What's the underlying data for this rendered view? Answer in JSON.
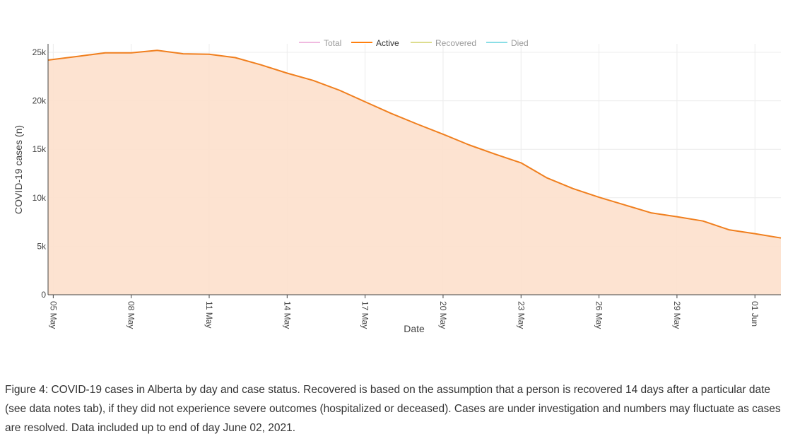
{
  "chart_data": {
    "type": "area",
    "title": "",
    "xlabel": "Date",
    "ylabel": "COVID-19 cases (n)",
    "ylim": [
      0,
      25000
    ],
    "y_ticks": [
      {
        "value": 0,
        "label": "0"
      },
      {
        "value": 5000,
        "label": "5k"
      },
      {
        "value": 10000,
        "label": "10k"
      },
      {
        "value": 15000,
        "label": "15k"
      },
      {
        "value": 20000,
        "label": "20k"
      },
      {
        "value": 25000,
        "label": "25k"
      }
    ],
    "x_ticks": [
      {
        "day": 0,
        "label": "05 May"
      },
      {
        "day": 3,
        "label": "08 May"
      },
      {
        "day": 6,
        "label": "11 May"
      },
      {
        "day": 9,
        "label": "14 May"
      },
      {
        "day": 12,
        "label": "17 May"
      },
      {
        "day": 15,
        "label": "20 May"
      },
      {
        "day": 18,
        "label": "23 May"
      },
      {
        "day": 21,
        "label": "26 May"
      },
      {
        "day": 24,
        "label": "29 May"
      },
      {
        "day": 27,
        "label": "01 Jun"
      }
    ],
    "x_range_days": [
      -0.2,
      28
    ],
    "legend": [
      {
        "name": "Total",
        "color": "#e377c2",
        "active": false
      },
      {
        "name": "Active",
        "color": "#ff7f0e",
        "active": true
      },
      {
        "name": "Recovered",
        "color": "#bcbd22",
        "active": false
      },
      {
        "name": "Died",
        "color": "#17becf",
        "active": false
      }
    ],
    "series": [
      {
        "name": "Active",
        "color": "#f07f1e",
        "fill": "#fde2cf",
        "x_day": [
          -0.2,
          1,
          2,
          3,
          4,
          5,
          6,
          7,
          8,
          9,
          10,
          11,
          12,
          13,
          14,
          15,
          16,
          17,
          18,
          19,
          20,
          21,
          22,
          23,
          24,
          25,
          26,
          27,
          28
        ],
        "values": [
          24200,
          24600,
          24950,
          24950,
          25200,
          24850,
          24800,
          24450,
          23700,
          22850,
          22100,
          21100,
          19900,
          18700,
          17600,
          16550,
          15450,
          14500,
          13600,
          12050,
          10950,
          10050,
          9250,
          8450,
          8050,
          7600,
          6700,
          6300,
          5850
        ]
      }
    ]
  },
  "caption": "Figure 4: COVID-19 cases in Alberta by day and case status. Recovered is based on the assumption that a person is recovered 14 days after a particular date (see data notes tab), if they did not experience severe outcomes (hospitalized or deceased). Cases are under investigation and numbers may fluctuate as cases are resolved. Data included up to end of day June 02, 2021."
}
